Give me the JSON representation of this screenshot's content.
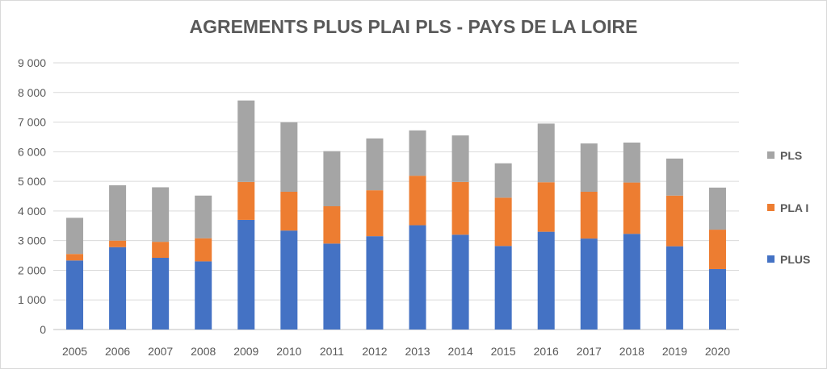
{
  "chart_data": {
    "type": "bar",
    "stacked": true,
    "title": "AGREMENTS PLUS PLAI PLS - PAYS DE LA LOIRE",
    "categories": [
      "2005",
      "2006",
      "2007",
      "2008",
      "2009",
      "2010",
      "2011",
      "2012",
      "2013",
      "2014",
      "2015",
      "2016",
      "2017",
      "2018",
      "2019",
      "2020"
    ],
    "series": [
      {
        "name": "PLUS",
        "color": "#4472c4",
        "values": [
          2330,
          2780,
          2420,
          2300,
          3700,
          3340,
          2900,
          3150,
          3520,
          3200,
          2820,
          3300,
          3070,
          3230,
          2810,
          2040
        ]
      },
      {
        "name": "PLA I",
        "color": "#ed7d31",
        "values": [
          220,
          220,
          540,
          780,
          1280,
          1310,
          1260,
          1550,
          1670,
          1780,
          1630,
          1670,
          1580,
          1730,
          1710,
          1330
        ]
      },
      {
        "name": "PLS",
        "color": "#a5a5a5",
        "values": [
          1220,
          1870,
          1840,
          1440,
          2750,
          2340,
          1860,
          1750,
          1530,
          1570,
          1160,
          1980,
          1630,
          1350,
          1250,
          1420
        ]
      }
    ],
    "ylim": [
      0,
      9000
    ],
    "yticks": [
      0,
      1000,
      2000,
      3000,
      4000,
      5000,
      6000,
      7000,
      8000,
      9000
    ],
    "ytick_labels": [
      "0",
      "1 000",
      "2 000",
      "3 000",
      "4 000",
      "5 000",
      "6 000",
      "7 000",
      "8 000",
      "9 000"
    ],
    "grid": true,
    "legend": {
      "position": "right",
      "entries": [
        "PLS",
        "PLA I",
        "PLUS"
      ]
    }
  }
}
